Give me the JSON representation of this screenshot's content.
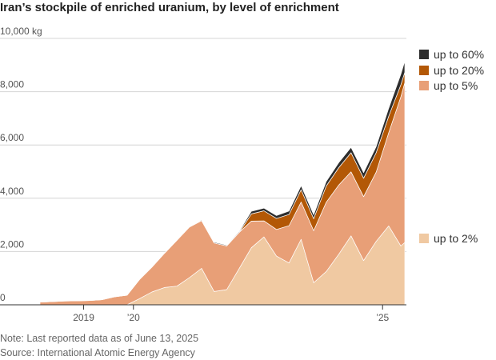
{
  "title": "Iran’s stockpile of enriched uranium, by level of enrichment",
  "note": "Note: Last reported data as of June 13, 2025",
  "source": "Source: International Atomic Energy Agency",
  "chart_data": {
    "type": "area",
    "stacked": true,
    "grid": "horizontal",
    "legend_placement": "right",
    "y_unit": "kg",
    "ylim": [
      0,
      10000
    ],
    "y_ticks": [
      {
        "value": 0,
        "label": "0"
      },
      {
        "value": 2000,
        "label": "2,000"
      },
      {
        "value": 4000,
        "label": "4,000"
      },
      {
        "value": 6000,
        "label": "6,000"
      },
      {
        "value": 8000,
        "label": "8,000"
      },
      {
        "value": 10000,
        "label": "10,000 kg"
      }
    ],
    "xlim": [
      "2018-02-15",
      "2025-06-13"
    ],
    "x_ticks": [
      {
        "date": "2019-01-01",
        "label": "2019"
      },
      {
        "date": "2020-01-01",
        "label": "’20"
      },
      {
        "date": "2025-01-01",
        "label": "’25"
      }
    ],
    "dates": [
      "2018-02-15",
      "2018-05-15",
      "2018-08-15",
      "2018-11-15",
      "2019-02-15",
      "2019-05-15",
      "2019-08-15",
      "2019-11-15",
      "2020-02-15",
      "2020-05-15",
      "2020-08-15",
      "2020-11-15",
      "2021-02-15",
      "2021-05-15",
      "2021-08-15",
      "2021-11-15",
      "2022-02-15",
      "2022-05-15",
      "2022-08-15",
      "2022-11-15",
      "2023-02-15",
      "2023-05-15",
      "2023-08-15",
      "2023-11-15",
      "2024-02-15",
      "2024-05-15",
      "2024-08-15",
      "2024-11-15",
      "2025-02-15",
      "2025-05-15",
      "2025-06-13"
    ],
    "series": [
      {
        "name": "up to 2%",
        "color": "#f0c9a2",
        "values": [
          0,
          0,
          0,
          0,
          0,
          0,
          0,
          0,
          230,
          480,
          650,
          700,
          1020,
          1370,
          500,
          570,
          1370,
          2140,
          2550,
          1830,
          1570,
          2460,
          830,
          1250,
          1900,
          2590,
          1660,
          2380,
          2960,
          2210,
          2340
        ]
      },
      {
        "name": "up to 5%",
        "color": "#e89f77",
        "values": [
          100,
          120,
          140,
          150,
          160,
          190,
          300,
          360,
          720,
          930,
          1280,
          1720,
          1900,
          1790,
          1820,
          1640,
          1350,
          1000,
          600,
          1000,
          1400,
          1400,
          1950,
          2600,
          2600,
          2400,
          2400,
          2600,
          3500,
          5600,
          6000
        ]
      },
      {
        "name": "up to 20%",
        "color": "#b35806",
        "values": [
          0,
          0,
          0,
          0,
          0,
          0,
          0,
          0,
          0,
          0,
          0,
          0,
          0,
          0,
          0,
          0,
          0,
          270,
          380,
          410,
          420,
          460,
          450,
          610,
          650,
          720,
          690,
          730,
          620,
          450,
          390
        ]
      },
      {
        "name": "up to 60%",
        "color": "#2d2d2d",
        "values": [
          0,
          0,
          0,
          0,
          0,
          0,
          0,
          0,
          0,
          0,
          0,
          0,
          0,
          30,
          30,
          30,
          40,
          100,
          100,
          110,
          130,
          150,
          150,
          170,
          190,
          200,
          210,
          230,
          300,
          400,
          420
        ]
      }
    ]
  }
}
